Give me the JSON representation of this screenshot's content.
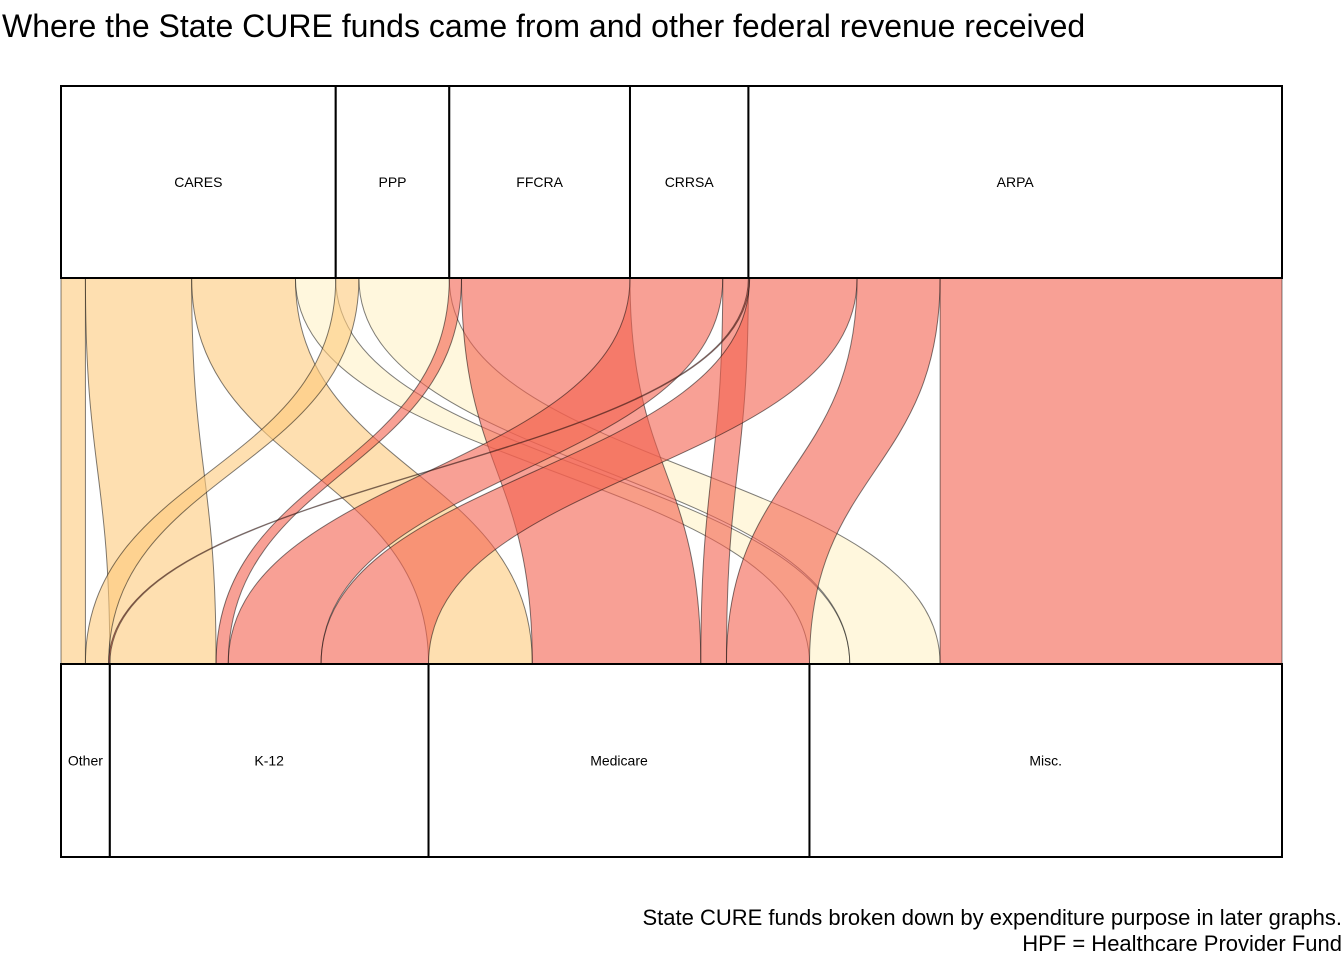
{
  "title": "Where the State CURE funds came from and other federal revenue received",
  "caption": {
    "line1": "State CURE funds broken down by expenditure purpose in later graphs.",
    "line2": "HPF = Healthcare Provider Fund"
  },
  "colors": {
    "light_yellow": "#FFF1C6",
    "light_orange": "#FDC97C",
    "salmon": "#F4604E",
    "stroke": "#000000"
  },
  "chart_data": {
    "type": "alluvial",
    "title": "Where the State CURE funds came from and other federal revenue received",
    "sources": [
      {
        "name": "CARES",
        "value": 22.5
      },
      {
        "name": "PPP",
        "value": 9.3
      },
      {
        "name": "FFCRA",
        "value": 14.8
      },
      {
        "name": "CRRSA",
        "value": 9.7
      },
      {
        "name": "ARPA",
        "value": 43.7
      }
    ],
    "targets": [
      {
        "name": "Other",
        "value": 4.0
      },
      {
        "name": "K-12",
        "value": 26.1
      },
      {
        "name": "Medicare",
        "value": 31.2
      },
      {
        "name": "Misc.",
        "value": 38.7
      }
    ],
    "flows": [
      {
        "from": "CARES",
        "to": "Other",
        "value": 2.0,
        "color": "light_orange"
      },
      {
        "from": "CARES",
        "to": "K-12",
        "value": 8.7,
        "color": "light_orange"
      },
      {
        "from": "CARES",
        "to": "Medicare",
        "value": 8.5,
        "color": "light_orange"
      },
      {
        "from": "CARES",
        "to": "Misc.",
        "value": 3.3,
        "color": "light_yellow"
      },
      {
        "from": "PPP",
        "to": "Other",
        "value": 1.9,
        "color": "light_orange"
      },
      {
        "from": "PPP",
        "to": "Misc.",
        "value": 7.4,
        "color": "light_yellow"
      },
      {
        "from": "FFCRA",
        "to": "K-12",
        "value": 1.0,
        "color": "salmon"
      },
      {
        "from": "FFCRA",
        "to": "Medicare",
        "value": 13.8,
        "color": "salmon"
      },
      {
        "from": "CRRSA",
        "to": "K-12",
        "value": 7.6,
        "color": "salmon"
      },
      {
        "from": "CRRSA",
        "to": "Medicare",
        "value": 2.1,
        "color": "salmon"
      },
      {
        "from": "ARPA",
        "to": "Other",
        "value": 0.1,
        "color": "salmon"
      },
      {
        "from": "ARPA",
        "to": "K-12",
        "value": 8.8,
        "color": "salmon"
      },
      {
        "from": "ARPA",
        "to": "Medicare",
        "value": 6.8,
        "color": "salmon"
      },
      {
        "from": "ARPA",
        "to": "Misc.",
        "value": 28.0,
        "color": "salmon"
      }
    ]
  }
}
